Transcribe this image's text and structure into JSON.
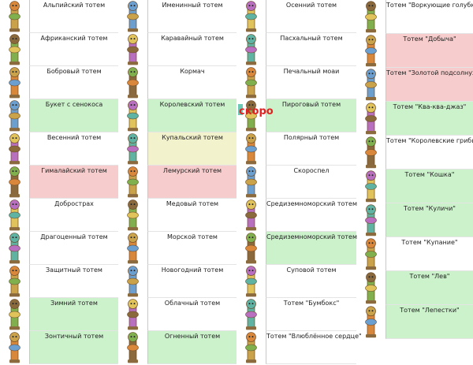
{
  "soon_label": "скоро",
  "colors": {
    "white": "#ffffff",
    "green": "#ccf2cc",
    "pink": "#f6cccc",
    "yellow": "#f2f2cc",
    "soon": "#e32020"
  },
  "columns": [
    {
      "items": [
        {
          "label": "Альпийский тотем",
          "color": "white",
          "icon": "totem-icon"
        },
        {
          "label": "Африканский тотем",
          "color": "white",
          "icon": "totem-icon"
        },
        {
          "label": "Бобровый тотем",
          "color": "white",
          "icon": "totem-icon"
        },
        {
          "label": "Букет с сенокоса",
          "color": "green",
          "icon": "totem-icon"
        },
        {
          "label": "Весенний тотем",
          "color": "white",
          "icon": "totem-icon"
        },
        {
          "label": "Гималайский тотем",
          "color": "pink",
          "icon": "totem-icon"
        },
        {
          "label": "Добрострах",
          "color": "white",
          "icon": "totem-icon"
        },
        {
          "label": "Драгоценный тотем",
          "color": "white",
          "icon": "totem-icon"
        },
        {
          "label": "Защитный тотем",
          "color": "white",
          "icon": "totem-icon"
        },
        {
          "label": "Зимний тотем",
          "color": "green",
          "icon": "totem-icon"
        },
        {
          "label": "Зонтичный тотем",
          "color": "green",
          "icon": "totem-icon"
        }
      ]
    },
    {
      "items": [
        {
          "label": "Именинный тотем",
          "color": "white",
          "icon": "totem-icon"
        },
        {
          "label": "Каравайный тотем",
          "color": "white",
          "icon": "totem-icon"
        },
        {
          "label": "Кормач",
          "color": "white",
          "icon": "totem-icon"
        },
        {
          "label": "Королевский тотем",
          "color": "green",
          "icon": "totem-icon"
        },
        {
          "label": "Купальский тотем",
          "color": "yellow",
          "icon": "totem-icon"
        },
        {
          "label": "Лемурский тотем",
          "color": "pink",
          "icon": "totem-icon"
        },
        {
          "label": "Медовый тотем",
          "color": "white",
          "icon": "totem-icon"
        },
        {
          "label": "Морской тотем",
          "color": "white",
          "icon": "totem-icon"
        },
        {
          "label": "Новогодний тотем",
          "color": "white",
          "icon": "totem-icon"
        },
        {
          "label": "Облачный тотем",
          "color": "white",
          "icon": "totem-icon"
        },
        {
          "label": "Огненный тотем",
          "color": "green",
          "icon": "totem-icon"
        }
      ]
    },
    {
      "items": [
        {
          "label": "Осенний тотем",
          "color": "white",
          "icon": "totem-icon"
        },
        {
          "label": "Пасхальный тотем",
          "color": "white",
          "icon": "totem-icon"
        },
        {
          "label": "Печальный моаи",
          "color": "white",
          "icon": "totem-icon"
        },
        {
          "label": "Пироговый тотем",
          "color": "green",
          "icon": "totem-icon"
        },
        {
          "label": "Полярный тотем",
          "color": "white",
          "icon": "totem-icon"
        },
        {
          "label": "Скороспел",
          "color": "white",
          "icon": "totem-icon"
        },
        {
          "label": "Средиземноморский тотем",
          "color": "white",
          "icon": "totem-icon"
        },
        {
          "label": "Средиземноморский тотем",
          "color": "green",
          "icon": "totem-icon"
        },
        {
          "label": "Суповой тотем",
          "color": "white",
          "icon": "totem-icon"
        },
        {
          "label": "Тотем \"Бумбокс\"",
          "color": "white",
          "icon": "totem-icon"
        },
        {
          "label": "Тотем \"Влюблённое сердце\"",
          "color": "white",
          "icon": "totem-icon"
        }
      ]
    },
    {
      "items": [
        {
          "label": "Тотем \"Воркующие голубки\"",
          "color": "white",
          "icon": "totem-icon"
        },
        {
          "label": "Тотем \"Добыча\"",
          "color": "pink",
          "icon": "totem-icon"
        },
        {
          "label": "Тотем \"Золотой подсолнух\"",
          "color": "pink",
          "icon": "totem-icon"
        },
        {
          "label": "Тотем \"Ква-ква-джаз\"",
          "color": "green",
          "icon": "totem-icon"
        },
        {
          "label": "Тотем \"Королевские грибы\"",
          "color": "white",
          "icon": "totem-icon"
        },
        {
          "label": "Тотем \"Кошка\"",
          "color": "green",
          "icon": "totem-icon"
        },
        {
          "label": "Тотем \"Куличи\"",
          "color": "green",
          "icon": "totem-icon"
        },
        {
          "label": "Тотем \"Купание\"",
          "color": "white",
          "icon": "totem-icon"
        },
        {
          "label": "Тотем \"Лев\"",
          "color": "green",
          "icon": "totem-icon"
        },
        {
          "label": "Тотем \"Лепестки\"",
          "color": "green",
          "icon": "totem-icon"
        }
      ]
    }
  ]
}
